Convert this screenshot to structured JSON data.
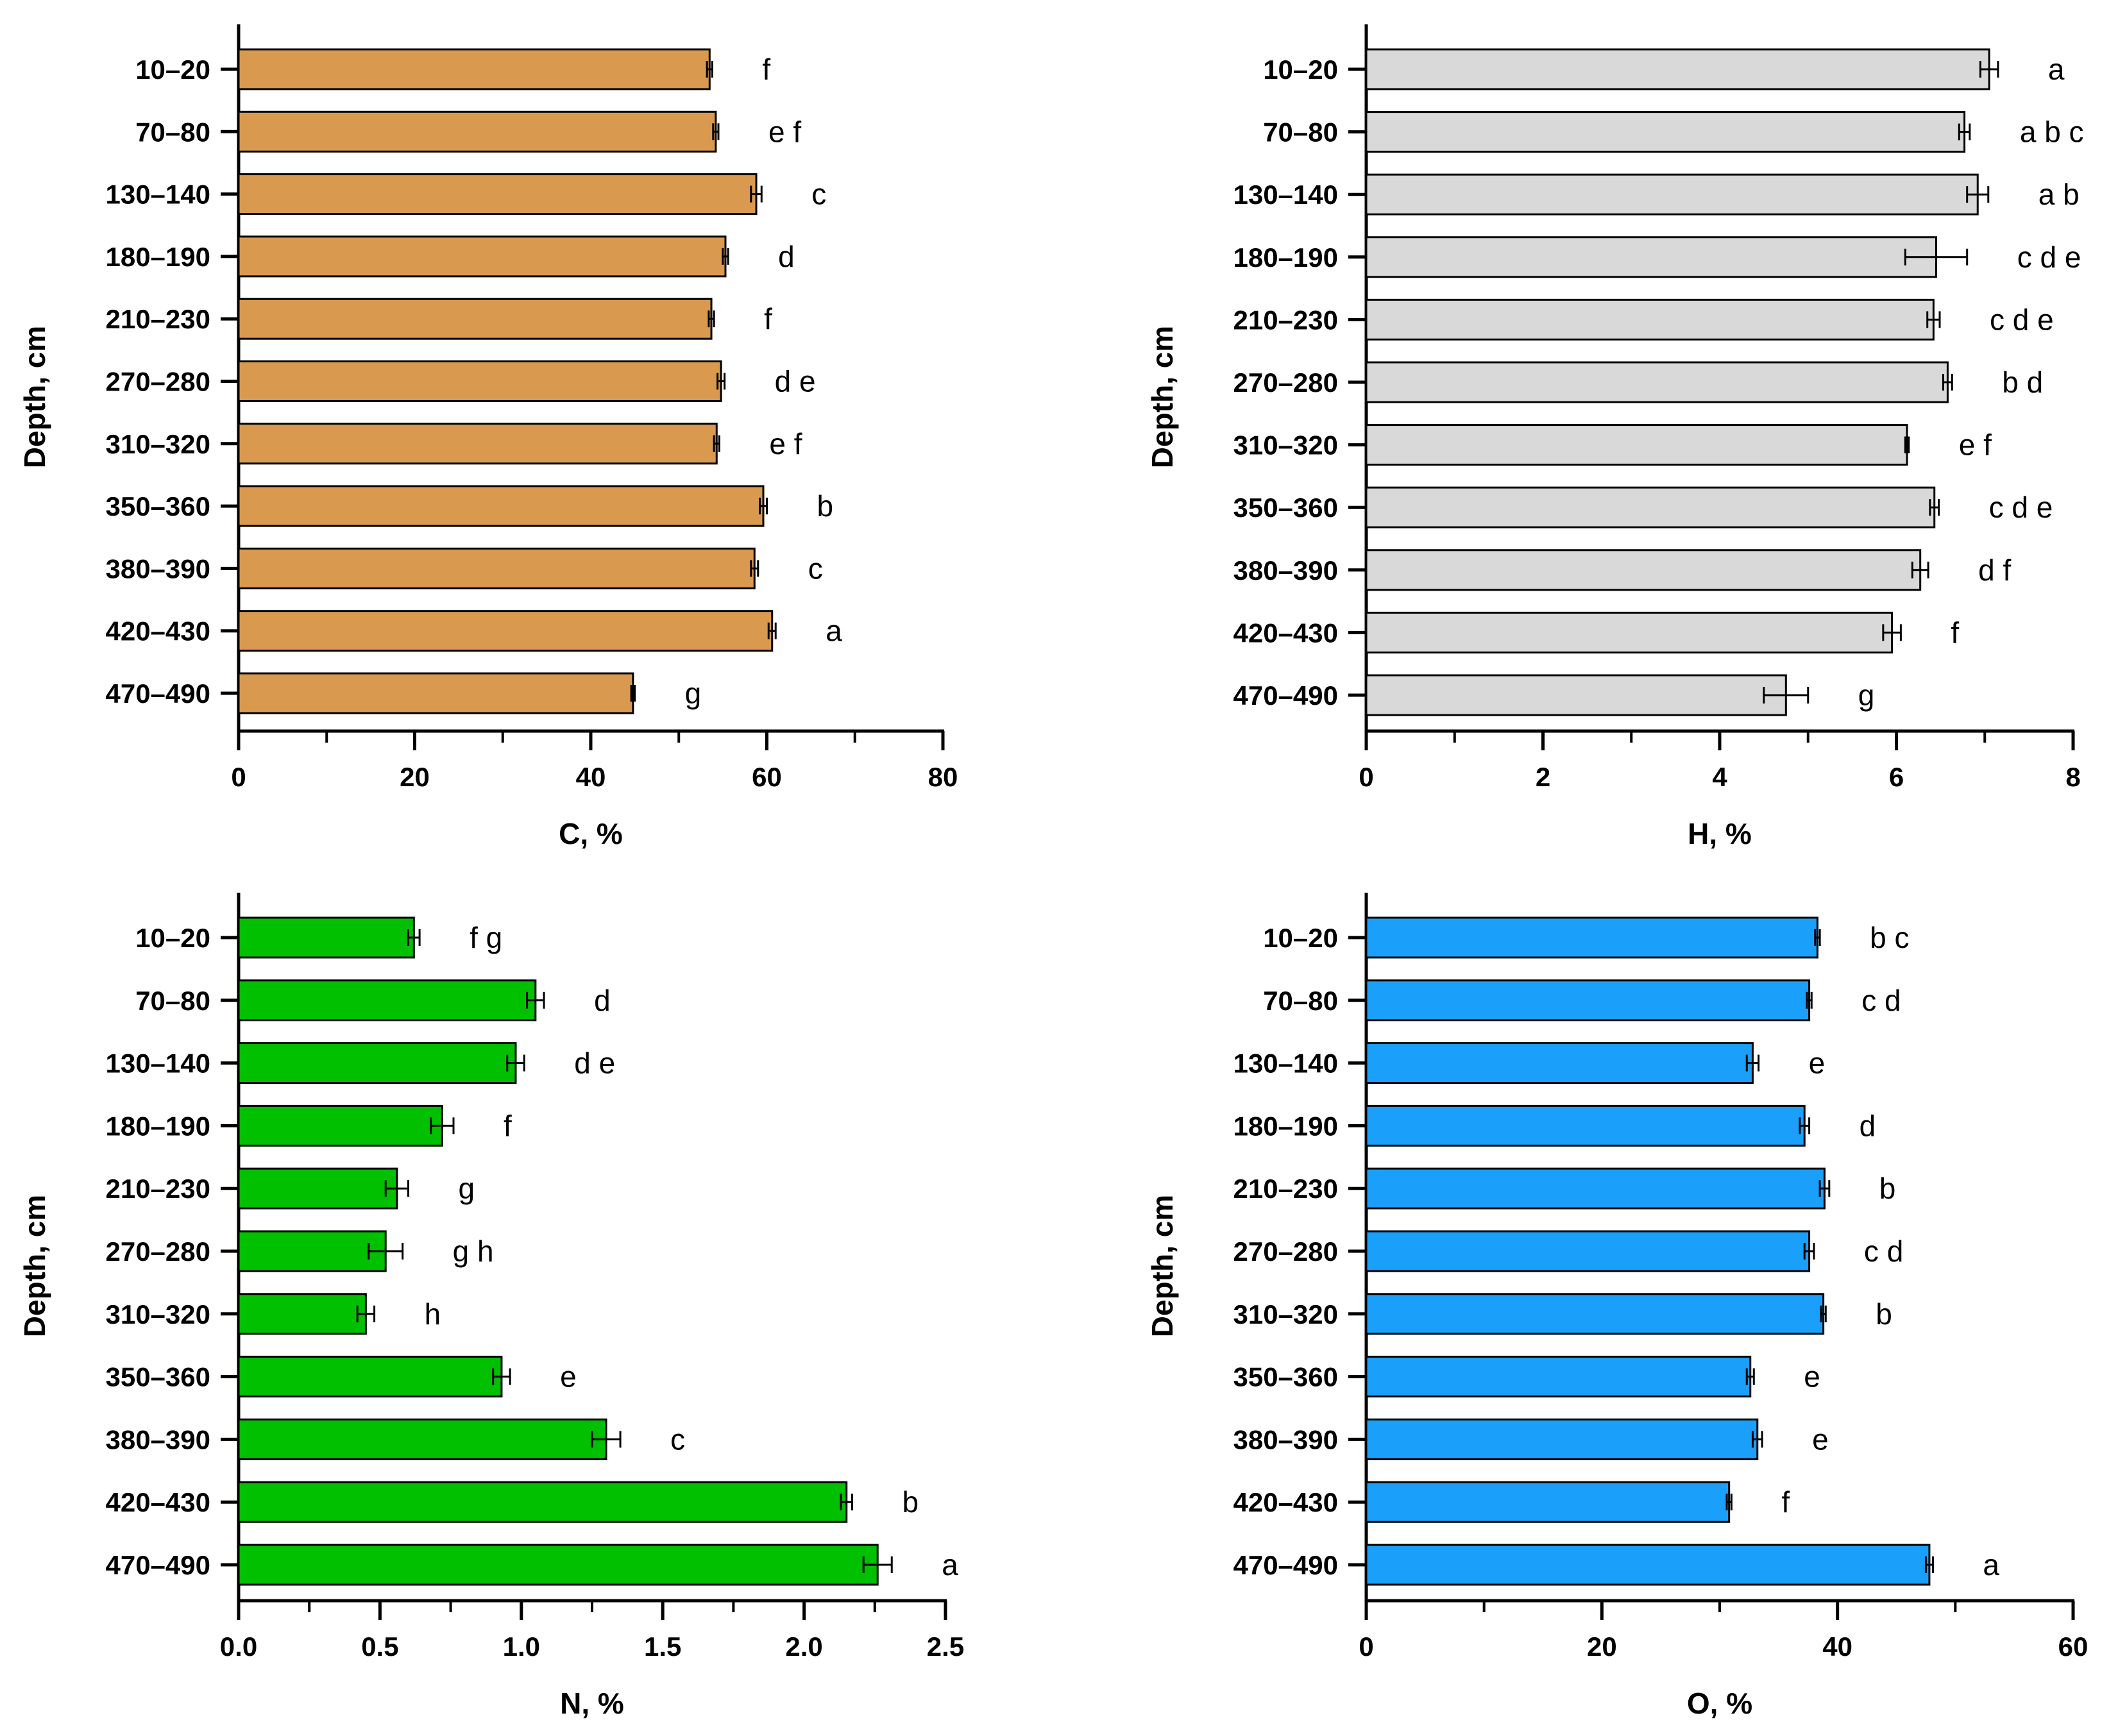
{
  "figure_title": "",
  "chart_data": [
    {
      "type": "bar",
      "orientation": "horizontal",
      "panel": "top-left",
      "categories": [
        "10–20",
        "70–80",
        "130–140",
        "180–190",
        "210–230",
        "270–280",
        "310–320",
        "350–360",
        "380–390",
        "420–430",
        "470–490"
      ],
      "values": [
        53.5,
        54.2,
        58.8,
        55.3,
        53.7,
        54.8,
        54.3,
        59.6,
        58.6,
        60.6,
        44.8
      ],
      "errors": [
        0.3,
        0.3,
        0.6,
        0.3,
        0.3,
        0.4,
        0.3,
        0.4,
        0.4,
        0.4,
        0.2
      ],
      "letters": [
        "f",
        "e f",
        "c",
        "d",
        "f",
        "d e",
        "e f",
        "b",
        "c",
        "a",
        "g"
      ],
      "xlabel": "C, %",
      "ylabel": "Depth, cm",
      "xlim": [
        0,
        80
      ],
      "xticks": [
        0,
        20,
        40,
        60,
        80
      ],
      "xtick_labels": [
        "0",
        "20",
        "40",
        "60",
        "80"
      ],
      "minor_step": 10,
      "color": "#D99A50"
    },
    {
      "type": "bar",
      "orientation": "horizontal",
      "panel": "top-right",
      "categories": [
        "10–20",
        "70–80",
        "130–140",
        "180–190",
        "210–230",
        "270–280",
        "310–320",
        "350–360",
        "380–390",
        "420–430",
        "470–490"
      ],
      "values": [
        7.05,
        6.77,
        6.92,
        6.45,
        6.42,
        6.58,
        6.12,
        6.43,
        6.27,
        5.95,
        4.75
      ],
      "errors": [
        0.1,
        0.06,
        0.12,
        0.35,
        0.07,
        0.05,
        0.02,
        0.05,
        0.09,
        0.1,
        0.25
      ],
      "letters": [
        "a",
        "a b c",
        "a b",
        "c d e",
        "c d e",
        "b d",
        "e f",
        "c d e",
        "d f",
        "f",
        "g"
      ],
      "xlabel": "H, %",
      "ylabel": "Depth, cm",
      "xlim": [
        0,
        8
      ],
      "xticks": [
        0,
        2,
        4,
        6,
        8
      ],
      "xtick_labels": [
        "0",
        "2",
        "4",
        "6",
        "8"
      ],
      "minor_step": 1,
      "color": "#D9D9D9"
    },
    {
      "type": "bar",
      "orientation": "horizontal",
      "panel": "bottom-left",
      "categories": [
        "10–20",
        "70–80",
        "130–140",
        "180–190",
        "210–230",
        "270–280",
        "310–320",
        "350–360",
        "380–390",
        "420–430",
        "470–490"
      ],
      "values": [
        0.62,
        1.05,
        0.98,
        0.72,
        0.56,
        0.52,
        0.45,
        0.93,
        1.3,
        2.15,
        2.26
      ],
      "errors": [
        0.02,
        0.03,
        0.03,
        0.04,
        0.04,
        0.06,
        0.03,
        0.03,
        0.05,
        0.02,
        0.05
      ],
      "letters": [
        "f g",
        "d",
        "d e",
        "f",
        "g",
        "g h",
        "h",
        "e",
        "c",
        "b",
        "a"
      ],
      "xlabel": "N, %",
      "ylabel": "Depth, cm",
      "xlim": [
        0,
        2.5
      ],
      "xticks": [
        0,
        0.5,
        1.0,
        1.5,
        2.0,
        2.5
      ],
      "xtick_labels": [
        "0.0",
        "0.5",
        "1.0",
        "1.5",
        "2.0",
        "2.5"
      ],
      "minor_step": 0.25,
      "color": "#00C000"
    },
    {
      "type": "bar",
      "orientation": "horizontal",
      "panel": "bottom-right",
      "categories": [
        "10–20",
        "70–80",
        "130–140",
        "180–190",
        "210–230",
        "270–280",
        "310–320",
        "350–360",
        "380–390",
        "420–430",
        "470–490"
      ],
      "values": [
        38.3,
        37.6,
        32.8,
        37.2,
        38.9,
        37.6,
        38.8,
        32.6,
        33.2,
        30.8,
        47.8
      ],
      "errors": [
        0.2,
        0.2,
        0.5,
        0.4,
        0.4,
        0.4,
        0.2,
        0.3,
        0.4,
        0.2,
        0.3
      ],
      "letters": [
        "b c",
        "c d",
        "e",
        "d",
        "b",
        "c d",
        "b",
        "e",
        "e",
        "f",
        "a"
      ],
      "xlabel": "O, %",
      "ylabel": "Depth, cm",
      "xlim": [
        0,
        60
      ],
      "xticks": [
        0,
        20,
        40,
        60
      ],
      "xtick_labels": [
        "0",
        "20",
        "40",
        "60"
      ],
      "minor_step": 10,
      "color": "#1AA0FA"
    }
  ]
}
